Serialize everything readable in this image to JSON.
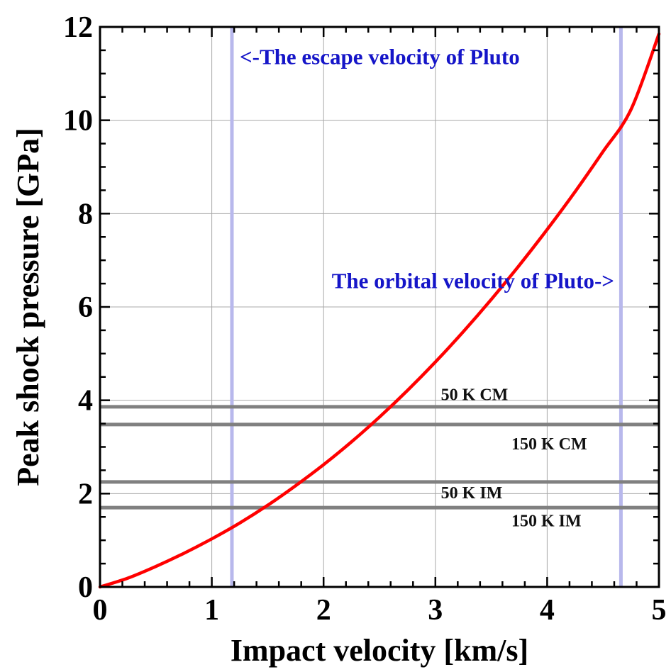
{
  "chart_data": {
    "type": "line",
    "title": "",
    "xlabel": "Impact velocity [km/s]",
    "ylabel": "Peak shock pressure [GPa]",
    "xlim": [
      0,
      5
    ],
    "ylim": [
      0,
      12
    ],
    "xticks": [
      0,
      1,
      2,
      3,
      4,
      5
    ],
    "yticks": [
      0,
      2,
      4,
      6,
      8,
      10,
      12
    ],
    "grid": true,
    "legend": "none",
    "series": [
      {
        "color": "#ff0000",
        "x": [
          0,
          0.25,
          0.5,
          0.75,
          1.0,
          1.25,
          1.5,
          1.75,
          2.0,
          2.25,
          2.5,
          2.75,
          3.0,
          3.25,
          3.5,
          3.75,
          4.0,
          4.25,
          4.5,
          4.75,
          5.0
        ],
        "y": [
          0,
          0.19,
          0.44,
          0.72,
          1.03,
          1.37,
          1.75,
          2.17,
          2.62,
          3.11,
          3.64,
          4.21,
          4.82,
          5.47,
          6.16,
          6.89,
          7.66,
          8.47,
          9.33,
          10.23,
          11.85
        ]
      }
    ],
    "vertical_lines": [
      {
        "x": 1.18,
        "color": "#b8b8ec",
        "label": "<-The escape velocity of Pluto",
        "label_x": 1.25,
        "label_y": 11.2
      },
      {
        "x": 4.66,
        "color": "#b8b8ec",
        "label": "The orbital velocity of Pluto->",
        "label_x": 4.6,
        "label_y": 6.4
      }
    ],
    "threshold_lines": [
      {
        "y": 3.86,
        "color": "#808080",
        "label": "50 K CM",
        "label_x": 3.05,
        "label_y": 4.0
      },
      {
        "y": 3.48,
        "color": "#808080",
        "label": "150 K CM",
        "label_x": 3.68,
        "label_y": 2.95
      },
      {
        "y": 2.25,
        "color": "#808080",
        "label": "50 K IM",
        "label_x": 3.05,
        "label_y": 1.9
      },
      {
        "y": 1.7,
        "color": "#808080",
        "label": "150 K IM",
        "label_x": 3.68,
        "label_y": 1.3
      }
    ],
    "colors": {
      "curve": "#ff0000",
      "velocity_line": "#b8b8ec",
      "velocity_label": "#1515c8",
      "threshold_line": "#808080",
      "grid": "#a8a8a8",
      "frame": "#000000"
    }
  }
}
